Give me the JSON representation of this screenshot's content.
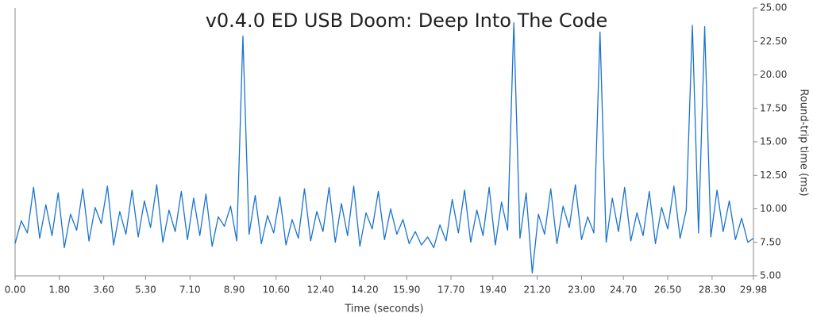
{
  "chart_data": {
    "type": "line",
    "title": "v0.4.0 ED USB Doom: Deep Into The Code",
    "x_label": "Time (seconds)",
    "y_label": "Round-trip time (ms)",
    "y_axis_side": "right",
    "grid": false,
    "x": [
      0,
      0.25,
      0.5,
      0.75,
      1,
      1.25,
      1.5,
      1.75,
      2,
      2.25,
      2.5,
      2.75,
      3,
      3.25,
      3.5,
      3.75,
      4,
      4.25,
      4.5,
      4.75,
      5,
      5.25,
      5.5,
      5.75,
      6,
      6.25,
      6.5,
      6.75,
      7,
      7.25,
      7.5,
      7.75,
      8,
      8.25,
      8.5,
      8.75,
      9,
      9.25,
      9.5,
      9.75,
      10,
      10.25,
      10.5,
      10.75,
      11,
      11.25,
      11.5,
      11.75,
      12,
      12.25,
      12.5,
      12.75,
      13,
      13.25,
      13.5,
      13.75,
      14,
      14.25,
      14.5,
      14.75,
      15,
      15.25,
      15.5,
      15.75,
      16,
      16.25,
      16.5,
      16.75,
      17,
      17.25,
      17.5,
      17.75,
      18,
      18.25,
      18.5,
      18.75,
      19,
      19.25,
      19.5,
      19.75,
      20,
      20.25,
      20.5,
      20.75,
      21,
      21.25,
      21.5,
      21.75,
      22,
      22.25,
      22.5,
      22.75,
      23,
      23.25,
      23.5,
      23.75,
      24,
      24.25,
      24.5,
      24.75,
      25,
      25.25,
      25.5,
      25.75,
      26,
      26.25,
      26.5,
      26.75,
      27,
      27.25,
      27.5,
      27.75,
      28,
      28.25,
      28.5,
      28.75,
      29,
      29.25,
      29.5,
      29.75,
      29.98
    ],
    "series": [
      {
        "name": "Round-trip time",
        "color": "#1a73d0",
        "values": [
          7.4,
          9.1,
          8.2,
          11.6,
          7.8,
          10.3,
          8.0,
          11.2,
          7.1,
          9.6,
          8.4,
          11.5,
          7.6,
          10.1,
          8.9,
          11.7,
          7.3,
          9.8,
          8.1,
          11.4,
          7.9,
          10.6,
          8.6,
          11.8,
          7.5,
          9.9,
          8.3,
          11.3,
          7.7,
          10.8,
          8.0,
          11.1,
          7.2,
          9.4,
          8.7,
          10.2,
          7.6,
          22.9,
          8.1,
          11.0,
          7.4,
          9.5,
          8.2,
          10.9,
          7.3,
          9.2,
          7.8,
          11.5,
          7.6,
          9.8,
          8.3,
          11.6,
          7.5,
          10.4,
          8.0,
          11.7,
          7.2,
          9.7,
          8.5,
          11.3,
          7.7,
          10.0,
          8.1,
          9.2,
          7.4,
          8.3,
          7.3,
          7.9,
          7.1,
          8.8,
          7.6,
          10.7,
          8.2,
          11.4,
          7.5,
          9.9,
          8.0,
          11.6,
          7.3,
          10.5,
          8.4,
          23.9,
          7.8,
          11.2,
          5.2,
          9.6,
          8.1,
          11.5,
          7.4,
          10.2,
          8.6,
          11.8,
          7.7,
          9.4,
          8.2,
          23.2,
          7.5,
          10.8,
          8.3,
          11.6,
          7.6,
          9.7,
          8.0,
          11.3,
          7.4,
          10.1,
          8.5,
          11.7,
          7.8,
          9.9,
          23.7,
          8.2,
          23.6,
          7.9,
          11.4,
          8.3,
          10.6,
          7.7,
          9.3,
          7.5,
          7.8
        ]
      }
    ],
    "xlim": [
      0,
      29.98
    ],
    "xticks": [
      {
        "value": 0,
        "label": "0.00"
      },
      {
        "value": 1.8,
        "label": "1.80"
      },
      {
        "value": 3.6,
        "label": "3.60"
      },
      {
        "value": 5.3,
        "label": "5.30"
      },
      {
        "value": 7.1,
        "label": "7.10"
      },
      {
        "value": 8.9,
        "label": "8.90"
      },
      {
        "value": 10.6,
        "label": "10.60"
      },
      {
        "value": 12.4,
        "label": "12.40"
      },
      {
        "value": 14.2,
        "label": "14.20"
      },
      {
        "value": 15.9,
        "label": "15.90"
      },
      {
        "value": 17.7,
        "label": "17.70"
      },
      {
        "value": 19.4,
        "label": "19.40"
      },
      {
        "value": 21.2,
        "label": "21.20"
      },
      {
        "value": 23,
        "label": "23.00"
      },
      {
        "value": 24.7,
        "label": "24.70"
      },
      {
        "value": 26.5,
        "label": "26.50"
      },
      {
        "value": 28.3,
        "label": "28.30"
      },
      {
        "value": 29.98,
        "label": "29.98"
      }
    ],
    "ylim": [
      5,
      25
    ],
    "yticks": [
      {
        "value": 5,
        "label": "5.00"
      },
      {
        "value": 7.5,
        "label": "7.50"
      },
      {
        "value": 10,
        "label": "10.00"
      },
      {
        "value": 12.5,
        "label": "12.50"
      },
      {
        "value": 15,
        "label": "15.00"
      },
      {
        "value": 17.5,
        "label": "17.50"
      },
      {
        "value": 20,
        "label": "20.00"
      },
      {
        "value": 22.5,
        "label": "22.50"
      },
      {
        "value": 25,
        "label": "25.00"
      }
    ]
  }
}
